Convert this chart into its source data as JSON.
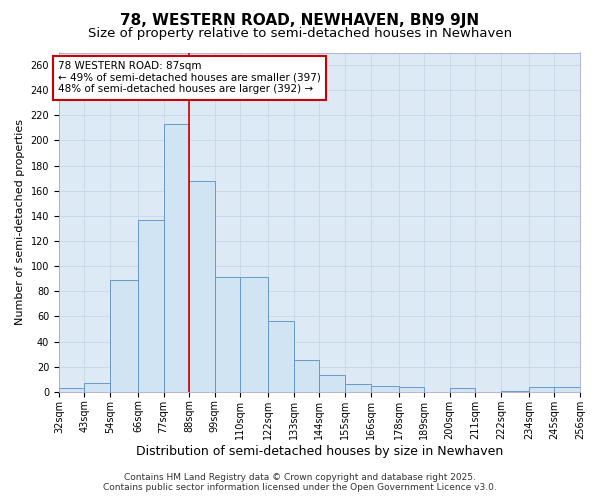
{
  "title": "78, WESTERN ROAD, NEWHAVEN, BN9 9JN",
  "subtitle": "Size of property relative to semi-detached houses in Newhaven",
  "xlabel": "Distribution of semi-detached houses by size in Newhaven",
  "ylabel": "Number of semi-detached properties",
  "footer_line1": "Contains HM Land Registry data © Crown copyright and database right 2025.",
  "footer_line2": "Contains public sector information licensed under the Open Government Licence v3.0.",
  "annotation_title": "78 WESTERN ROAD: 87sqm",
  "annotation_line1": "← 49% of semi-detached houses are smaller (397)",
  "annotation_line2": "48% of semi-detached houses are larger (392) →",
  "bar_left_edges": [
    32,
    43,
    54,
    66,
    77,
    88,
    99,
    110,
    122,
    133,
    144,
    155,
    166,
    178,
    189,
    200,
    211,
    222,
    234,
    245
  ],
  "bar_widths": [
    11,
    11,
    12,
    11,
    11,
    11,
    11,
    12,
    11,
    11,
    11,
    11,
    12,
    11,
    11,
    11,
    11,
    12,
    11,
    11
  ],
  "bar_heights": [
    3,
    7,
    89,
    137,
    213,
    168,
    91,
    91,
    56,
    25,
    13,
    6,
    5,
    4,
    0,
    3,
    0,
    1,
    4,
    4
  ],
  "tick_labels": [
    "32sqm",
    "43sqm",
    "54sqm",
    "66sqm",
    "77sqm",
    "88sqm",
    "99sqm",
    "110sqm",
    "122sqm",
    "133sqm",
    "144sqm",
    "155sqm",
    "166sqm",
    "178sqm",
    "189sqm",
    "200sqm",
    "211sqm",
    "222sqm",
    "234sqm",
    "245sqm",
    "256sqm"
  ],
  "bar_color": "#d0e4f4",
  "bar_edge_color": "#6699cc",
  "vline_color": "#cc0000",
  "vline_x": 88,
  "xlim": [
    32,
    256
  ],
  "ylim": [
    0,
    270
  ],
  "yticks": [
    0,
    20,
    40,
    60,
    80,
    100,
    120,
    140,
    160,
    180,
    200,
    220,
    240,
    260
  ],
  "grid_color": "#c8daea",
  "background_color": "#ffffff",
  "plot_bg_color": "#ddeaf6",
  "annotation_box_color": "#ffffff",
  "annotation_box_edge": "#cc0000",
  "title_fontsize": 11,
  "subtitle_fontsize": 9.5,
  "tick_fontsize": 7,
  "ylabel_fontsize": 8,
  "xlabel_fontsize": 9,
  "footer_fontsize": 6.5,
  "annotation_fontsize": 7.5
}
